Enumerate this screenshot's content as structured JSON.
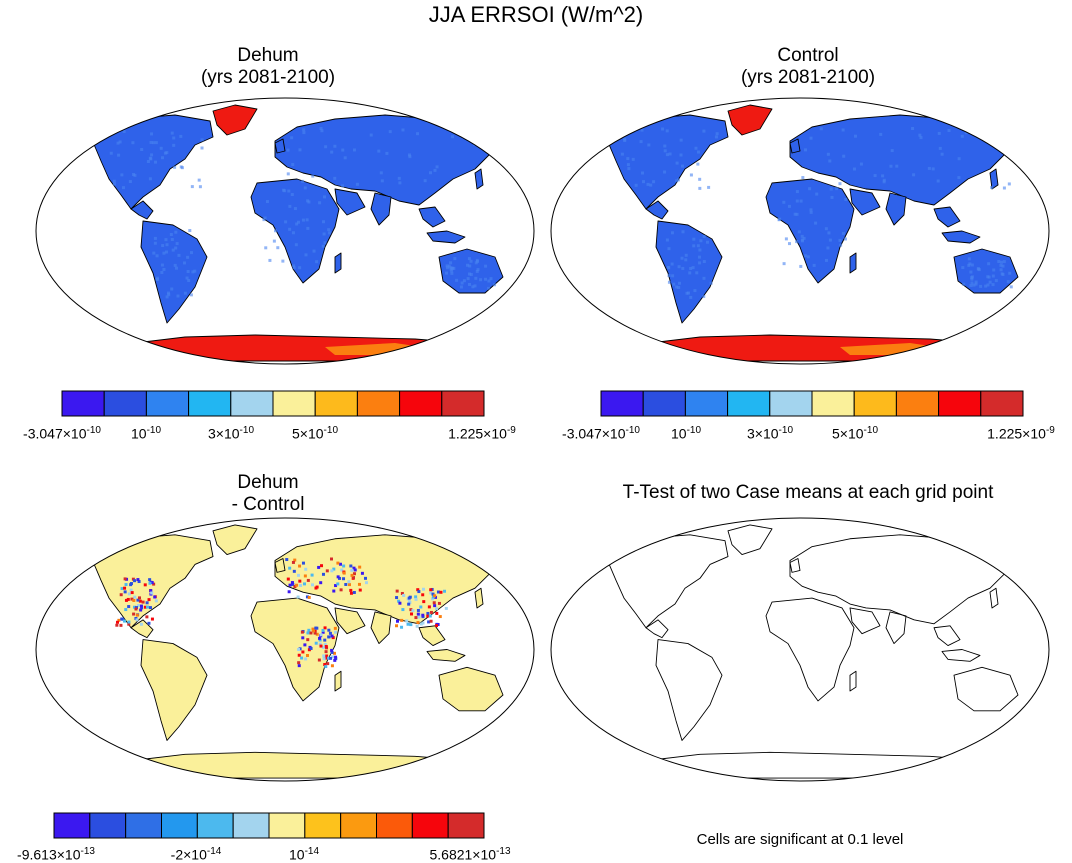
{
  "figure": {
    "title": "JJA ERRSOI (W/m^2)"
  },
  "panels": [
    {
      "id": "dehum",
      "title_line1": "Dehum",
      "title_line2": "(yrs 2081-2100)",
      "fill": "land-blue-with-red-ice"
    },
    {
      "id": "control",
      "title_line1": "Control",
      "title_line2": "(yrs 2081-2100)",
      "fill": "land-blue-with-red-ice"
    },
    {
      "id": "difference",
      "title_line1": "Dehum",
      "title_line2": "- Control",
      "fill": "land-pale-yellow-with-speckles"
    },
    {
      "id": "ttest",
      "title_line1": "T-Test of two Case means at each grid point",
      "title_line2": "",
      "fill": "outline-only",
      "footnote": "Cells are significant at 0.1 level"
    }
  ],
  "colorbars": {
    "top_colors": [
      "#3b18f0",
      "#2b4ee0",
      "#2f83f0",
      "#22b6f2",
      "#a3d4ee",
      "#faf09a",
      "#fdba1c",
      "#fb7f10",
      "#f6050c",
      "#d42b2b"
    ],
    "top_labels": [
      {
        "base": "-3.047×10",
        "exp": "-10"
      },
      {
        "base": "10",
        "exp": "-10"
      },
      {
        "base": "3×10",
        "exp": "-10"
      },
      {
        "base": "5×10",
        "exp": "-10"
      },
      {
        "base": "1.225×10",
        "exp": "-9"
      }
    ],
    "diff_colors": [
      "#3b18f0",
      "#2b4ee0",
      "#2f6fe6",
      "#2398ee",
      "#4cb9ee",
      "#a3d4ee",
      "#faf09a",
      "#fdc21c",
      "#fb9a10",
      "#fb5a0a",
      "#f6050c",
      "#d42b2b"
    ],
    "diff_labels": [
      {
        "base": "-9.613×10",
        "exp": "-13"
      },
      {
        "base": "-2×10",
        "exp": "-14"
      },
      {
        "base": "10",
        "exp": "-14"
      },
      {
        "base": "5.6821×10",
        "exp": "-13"
      }
    ]
  },
  "colors": {
    "land_blue": "#2f62ea",
    "land_blue_light": "#4a83f0",
    "ice_red": "#ef1a12",
    "ice_orange": "#fb7f10",
    "diff_yellow": "#faf09a",
    "outline": "#000000"
  }
}
